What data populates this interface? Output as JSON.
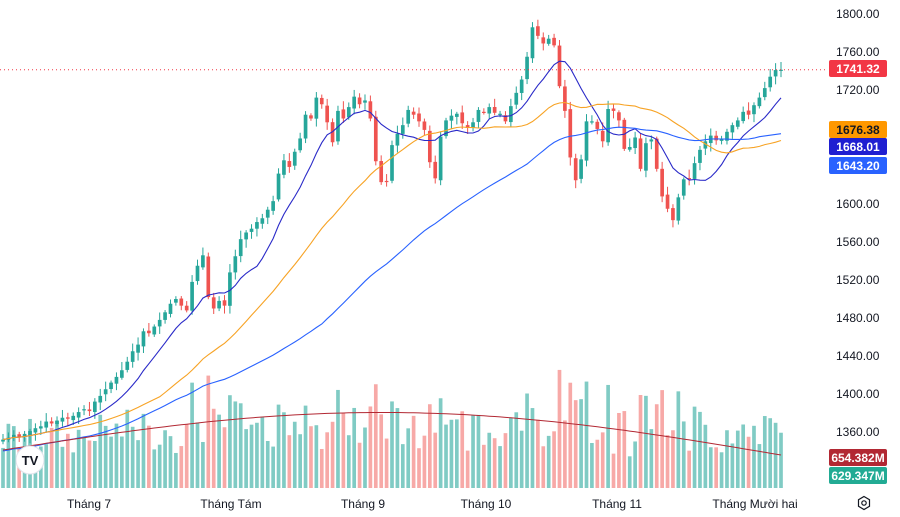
{
  "chart_data": {
    "type": "candlestick",
    "y_axis": {
      "range": [
        1340,
        1810
      ],
      "ticks": [
        1800,
        1760,
        1720,
        1680,
        1640,
        1600,
        1560,
        1520,
        1480,
        1440,
        1400,
        1360
      ]
    },
    "x_axis": {
      "labels": [
        "Tháng 7",
        "Tháng Tám",
        "Tháng 9",
        "Tháng 10",
        "Tháng 11",
        "Tháng Mười hai"
      ]
    },
    "colors": {
      "up": "#26a69a",
      "down": "#ef5350",
      "up_volume": "#80cbc4",
      "down_volume": "#f7a9a7",
      "ma_short": "#2a2ac8",
      "ma_mid": "#f7a325",
      "ma_long": "#2962ff",
      "vol_ma": "#b22833"
    },
    "last_price": "1741.32",
    "price_markers": [
      {
        "label": "1741.32",
        "color": "#f23645",
        "text_color": "#ffffff"
      },
      {
        "label": "1676.38",
        "color": "#ff9800",
        "text_color": "#131722"
      },
      {
        "label": "1668.01",
        "color": "#1f1fd1",
        "text_color": "#ffffff"
      },
      {
        "label": "1643.20",
        "color": "#2962ff",
        "text_color": "#ffffff"
      },
      {
        "label": "654.382M",
        "color": "#b22833",
        "text_color": "#ffffff"
      },
      {
        "label": "629.347M",
        "color": "#22ab94",
        "text_color": "#ffffff"
      }
    ],
    "candles_close": [
      1352,
      1354,
      1357,
      1355,
      1358,
      1361,
      1364,
      1366,
      1371,
      1369,
      1372,
      1375,
      1374,
      1377,
      1381,
      1384,
      1382,
      1392,
      1398,
      1405,
      1412,
      1418,
      1425,
      1434,
      1445,
      1452,
      1466,
      1464,
      1471,
      1478,
      1486,
      1495,
      1500,
      1493,
      1488,
      1518,
      1535,
      1546,
      1502,
      1490,
      1498,
      1493,
      1528,
      1545,
      1563,
      1570,
      1574,
      1581,
      1585,
      1594,
      1603,
      1632,
      1646,
      1639,
      1655,
      1669,
      1694,
      1690,
      1712,
      1705,
      1686,
      1665,
      1698,
      1690,
      1702,
      1713,
      1705,
      1709,
      1690,
      1645,
      1623,
      1624,
      1662,
      1674,
      1683,
      1699,
      1694,
      1687,
      1678,
      1644,
      1627,
      1671,
      1688,
      1693,
      1695,
      1685,
      1680,
      1686,
      1699,
      1697,
      1702,
      1696,
      1695,
      1687,
      1703,
      1717,
      1731,
      1755,
      1786,
      1777,
      1769,
      1774,
      1767,
      1724,
      1698,
      1649,
      1625,
      1647,
      1687,
      1687,
      1679,
      1666,
      1700,
      1698,
      1688,
      1658,
      1660,
      1670,
      1637,
      1664,
      1668,
      1637,
      1608,
      1595,
      1583,
      1607,
      1626,
      1627,
      1643,
      1657,
      1666,
      1672,
      1667,
      1668,
      1676,
      1683,
      1688,
      1697,
      1694,
      1704,
      1712,
      1722,
      1734,
      1741,
      1741.32
    ]
  },
  "watermark": "TV"
}
